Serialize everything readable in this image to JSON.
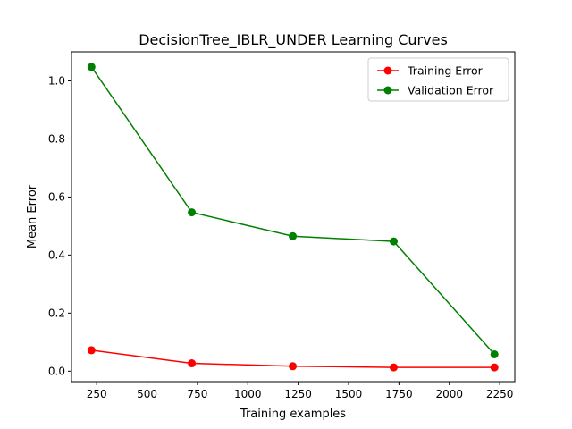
{
  "chart_data": {
    "type": "line",
    "title": "DecisionTree_IBLR_UNDER Learning Curves",
    "xlabel": "Training examples",
    "ylabel": "Mean Error",
    "xlim": [
      125,
      2325
    ],
    "ylim": [
      -0.036,
      1.1
    ],
    "xticks": [
      250,
      500,
      750,
      1000,
      1250,
      1500,
      1750,
      2000,
      2250
    ],
    "yticks": [
      0.0,
      0.2,
      0.4,
      0.6,
      0.8,
      1.0
    ],
    "ytick_labels": [
      "0.0",
      "0.2",
      "0.4",
      "0.6",
      "0.8",
      "1.0"
    ],
    "grid": false,
    "legend_position": "top-right",
    "x": [
      224,
      722,
      1223,
      1724,
      2224
    ],
    "series": [
      {
        "name": "Training Error",
        "color": "#ff0000",
        "values": [
          0.072,
          0.027,
          0.017,
          0.013,
          0.013
        ]
      },
      {
        "name": "Validation Error",
        "color": "#008000",
        "values": [
          1.048,
          0.547,
          0.465,
          0.447,
          0.058
        ]
      }
    ]
  }
}
